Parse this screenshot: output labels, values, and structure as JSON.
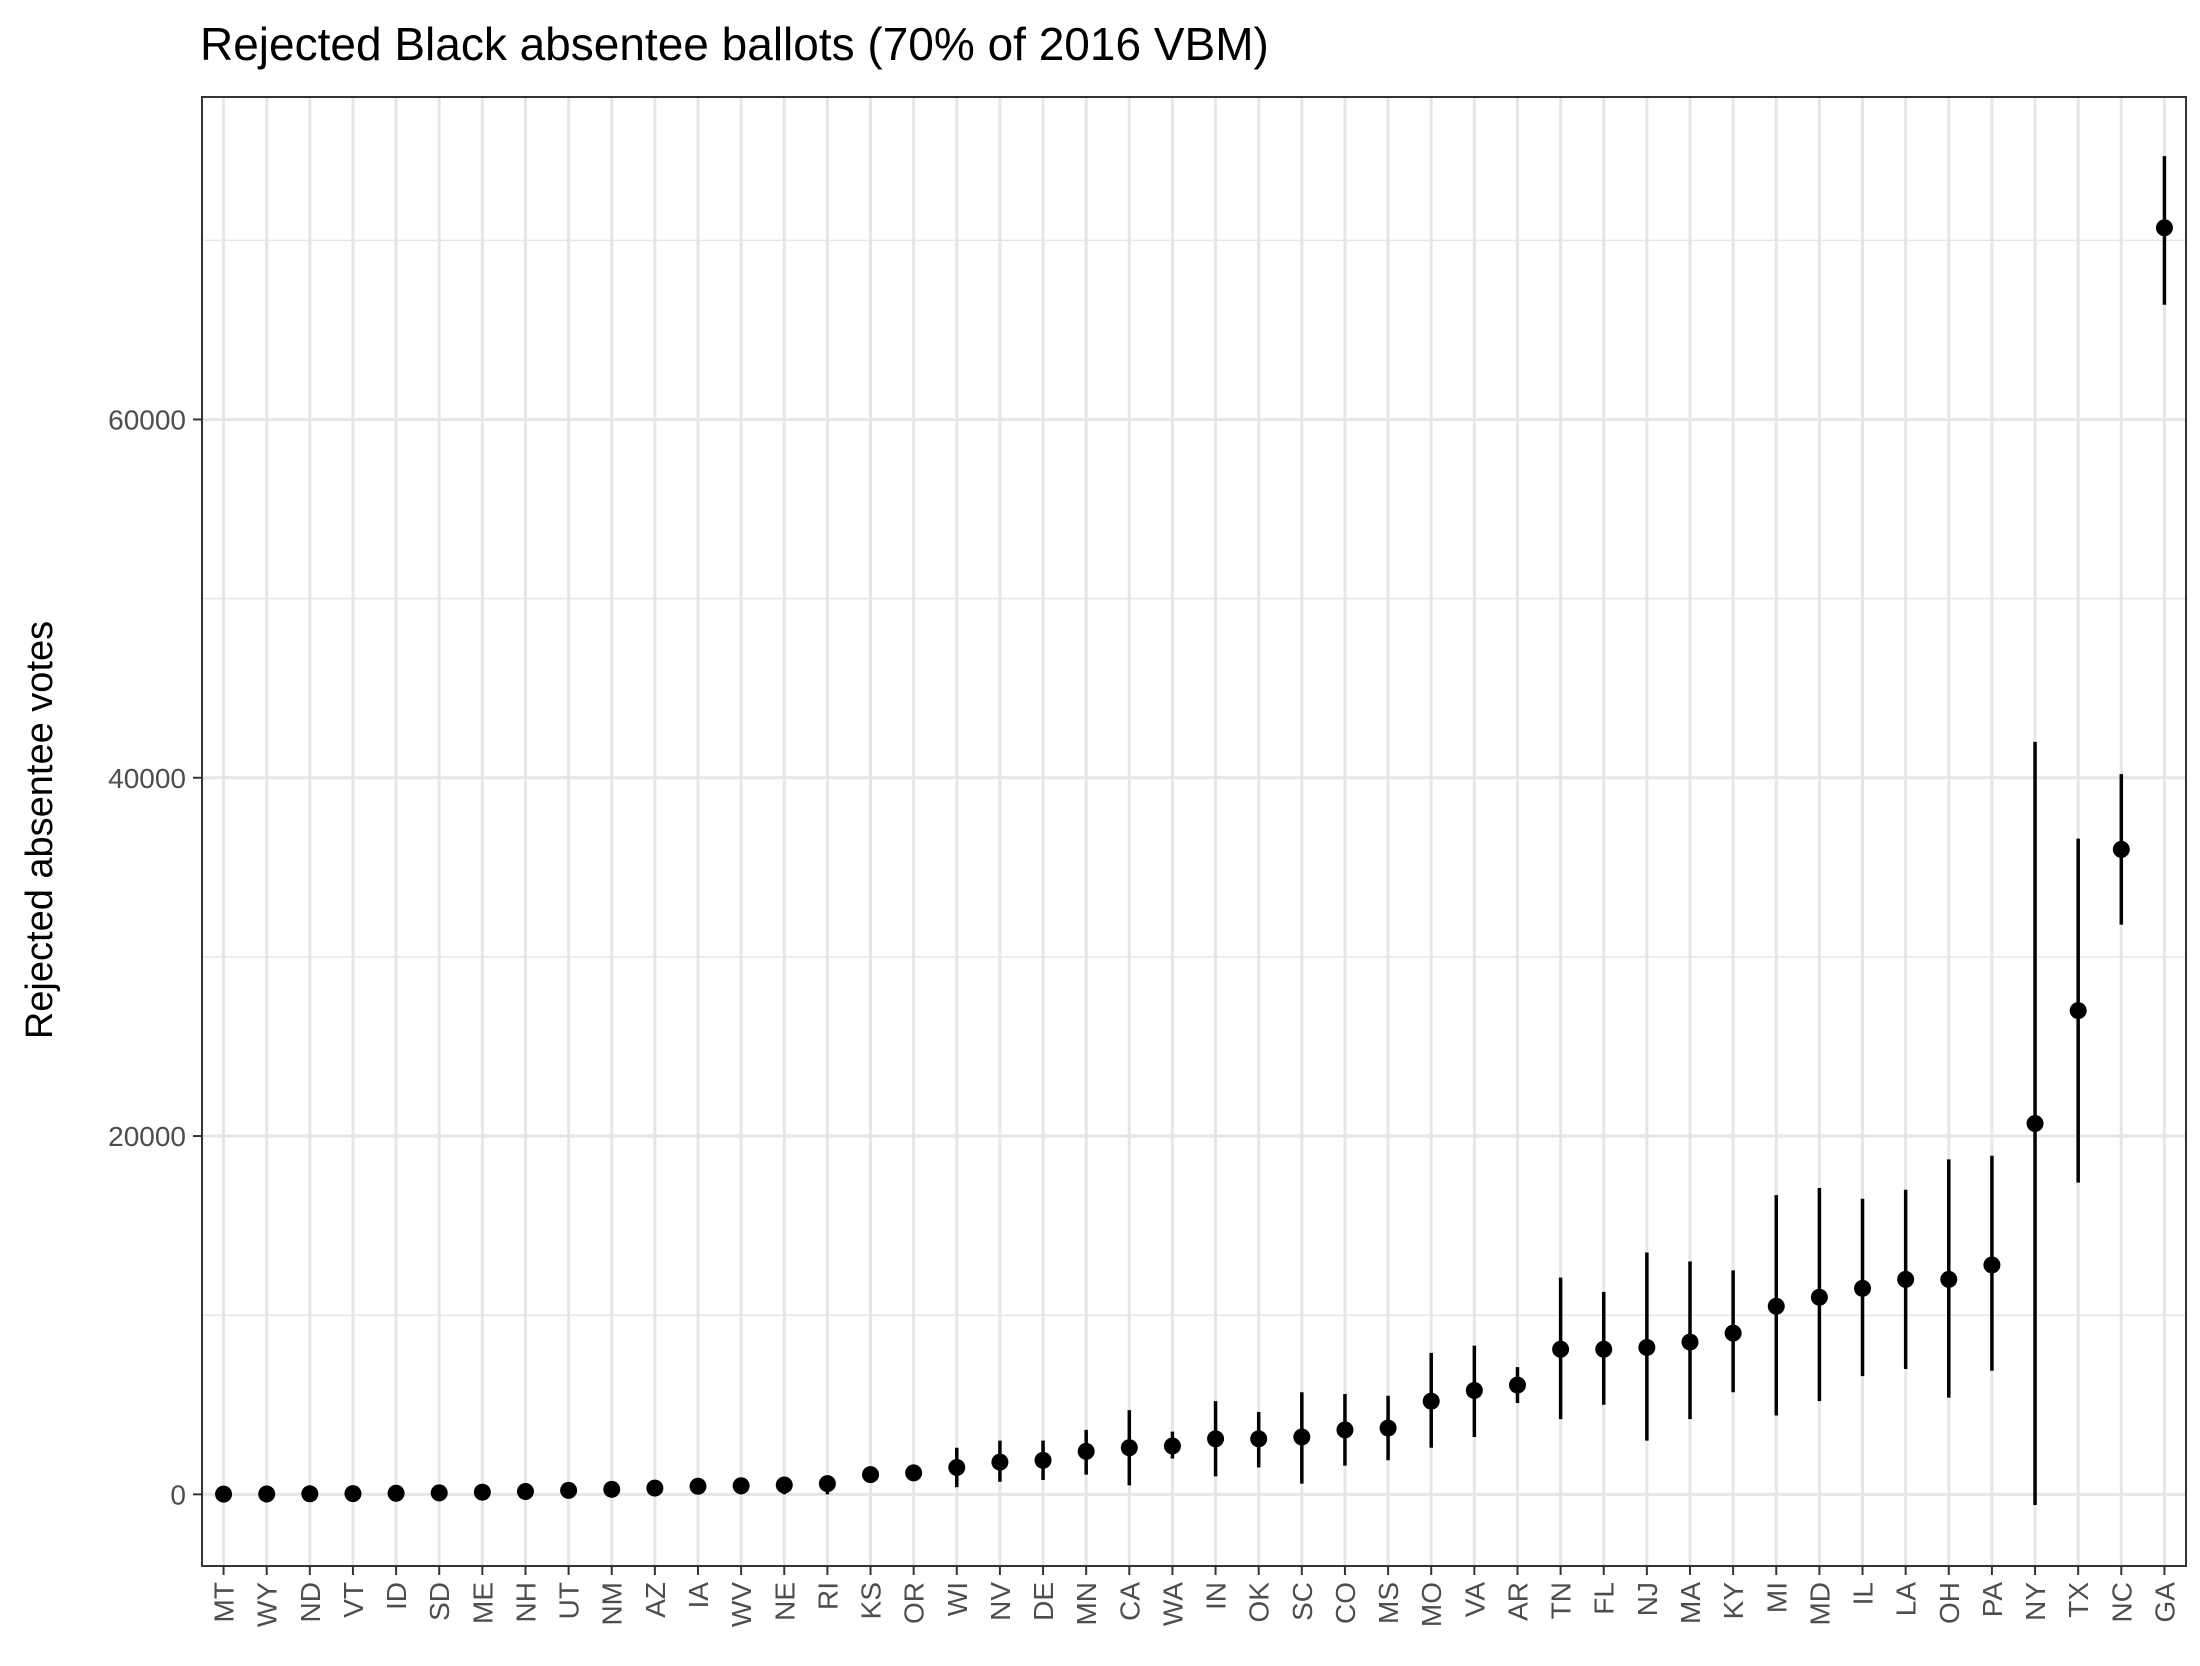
{
  "chart_data": {
    "type": "scatter",
    "title": "Rejected Black absentee ballots (70% of 2016 VBM)",
    "xlabel": "",
    "ylabel": "Rejected absentee votes",
    "ylim": [
      -4000,
      78000
    ],
    "yticks": [
      0,
      20000,
      40000,
      60000
    ],
    "ytick_labels": [
      "0",
      "20000",
      "40000",
      "60000"
    ],
    "grid": true,
    "x_tick_rotation": "vertical",
    "categories": [
      "MT",
      "WY",
      "ND",
      "VT",
      "ID",
      "SD",
      "ME",
      "NH",
      "UT",
      "NM",
      "AZ",
      "IA",
      "WV",
      "NE",
      "RI",
      "KS",
      "OR",
      "WI",
      "NV",
      "DE",
      "MN",
      "CA",
      "WA",
      "IN",
      "OK",
      "SC",
      "CO",
      "MS",
      "MO",
      "VA",
      "AR",
      "TN",
      "FL",
      "NJ",
      "MA",
      "KY",
      "MI",
      "MD",
      "IL",
      "LA",
      "OH",
      "PA",
      "NY",
      "TX",
      "NC",
      "GA"
    ],
    "values": [
      10,
      20,
      30,
      40,
      60,
      80,
      120,
      160,
      220,
      280,
      350,
      450,
      480,
      520,
      600,
      1100,
      1200,
      1500,
      1800,
      1900,
      2400,
      2600,
      2700,
      3100,
      3100,
      3200,
      3600,
      3700,
      5200,
      5800,
      6100,
      8100,
      8100,
      8200,
      8500,
      9000,
      10500,
      11000,
      11500,
      12000,
      12000,
      12800,
      20700,
      27000,
      36000,
      70700
    ],
    "lower": [
      0,
      0,
      0,
      0,
      0,
      0,
      0,
      0,
      0,
      0,
      0,
      0,
      0,
      0,
      0,
      900,
      1000,
      400,
      700,
      800,
      1100,
      500,
      2000,
      1000,
      1500,
      600,
      1600,
      1900,
      2600,
      3200,
      5100,
      4200,
      5000,
      3000,
      4200,
      5700,
      4400,
      5200,
      6600,
      7000,
      5400,
      6900,
      -600,
      17400,
      31800,
      66400
    ],
    "upper": [
      50,
      60,
      80,
      90,
      110,
      140,
      190,
      240,
      320,
      380,
      440,
      560,
      580,
      630,
      720,
      1300,
      1400,
      2600,
      3000,
      3000,
      3600,
      4700,
      3500,
      5200,
      4600,
      5700,
      5600,
      5500,
      7900,
      8300,
      7100,
      12100,
      11300,
      13500,
      13000,
      12500,
      16700,
      17100,
      16500,
      17000,
      18700,
      18900,
      42000,
      36600,
      40200,
      74700
    ],
    "marker": "point-with-interval",
    "color": "#000000",
    "grid_color": "#e6e6e6",
    "panel_border_color": "#333333"
  }
}
